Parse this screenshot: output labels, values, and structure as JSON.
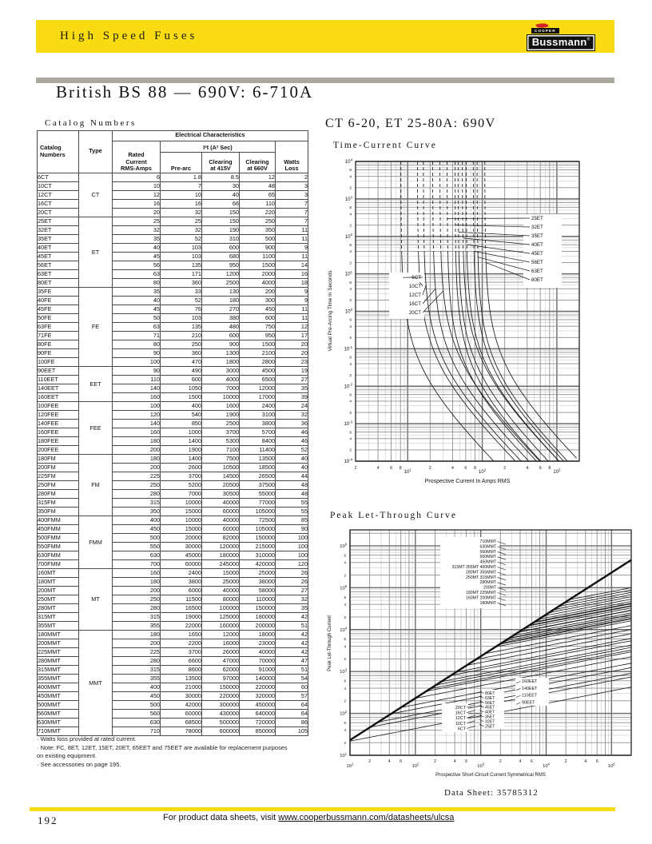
{
  "header": {
    "bar_title": "High Speed Fuses",
    "logo_cooper": "COOPER",
    "logo_brand": "Bussmann",
    "logo_reg": "®",
    "accent_color": "#F8DB12",
    "flame_color": "#D2232A"
  },
  "page_title": "British BS 88 — 690V: 6-710A",
  "catalog": {
    "label": "Catalog Numbers",
    "table": {
      "headers": {
        "catalog": "Catalog\nNumbers",
        "type": "Type",
        "electrical": "Electrical Characteristics",
        "rated": "Rated\nCurrent\nRMS-Amps",
        "i2t": "I²t (A² Sec)",
        "prearc": "Pre-arc",
        "clearing415": "Clearing\nat 415V",
        "clearing660": "Clearing\nat 660V",
        "watts": "Watts\nLoss"
      },
      "groups": [
        {
          "type": "CT",
          "rows": [
            [
              "6CT",
              "6",
              "1.8",
              "8.5",
              "12",
              "2"
            ],
            [
              "10CT",
              "10",
              "7",
              "30",
              "48",
              "3"
            ],
            [
              "12CT",
              "12",
              "10",
              "40",
              "65",
              "3"
            ],
            [
              "16CT",
              "16",
              "16",
              "66",
              "110",
              "7"
            ],
            [
              "20CT",
              "20",
              "32",
              "150",
              "220",
              "7"
            ]
          ]
        },
        {
          "type": "ET",
          "rows": [
            [
              "25ET",
              "25",
              "25",
              "150",
              "250",
              "7"
            ],
            [
              "32ET",
              "32",
              "32",
              "190",
              "350",
              "11"
            ],
            [
              "35ET",
              "35",
              "52",
              "310",
              "500",
              "11"
            ],
            [
              "40ET",
              "40",
              "103",
              "600",
              "900",
              "9"
            ],
            [
              "45ET",
              "45",
              "103",
              "680",
              "1100",
              "11"
            ],
            [
              "56ET",
              "56",
              "135",
              "950",
              "1500",
              "14"
            ],
            [
              "63ET",
              "63",
              "171",
              "1200",
              "2000",
              "16"
            ],
            [
              "80ET",
              "80",
              "360",
              "2500",
              "4000",
              "18"
            ]
          ]
        },
        {
          "type": "FE",
          "rows": [
            [
              "35FE",
              "35",
              "33",
              "130",
              "200",
              "9"
            ],
            [
              "40FE",
              "40",
              "52",
              "180",
              "300",
              "9"
            ],
            [
              "45FE",
              "45",
              "76",
              "270",
              "450",
              "11"
            ],
            [
              "50FE",
              "50",
              "103",
              "380",
              "600",
              "11"
            ],
            [
              "63FE",
              "63",
              "135",
              "480",
              "750",
              "12"
            ],
            [
              "71FE",
              "71",
              "210",
              "600",
              "950",
              "17"
            ],
            [
              "80FE",
              "80",
              "250",
              "900",
              "1500",
              "20"
            ],
            [
              "90FE",
              "90",
              "360",
              "1300",
              "2100",
              "20"
            ],
            [
              "100FE",
              "100",
              "470",
              "1800",
              "2800",
              "23"
            ]
          ]
        },
        {
          "type": "EET",
          "rows": [
            [
              "90EET",
              "90",
              "490",
              "3000",
              "4500",
              "19"
            ],
            [
              "110EET",
              "110",
              "600",
              "4000",
              "6500",
              "27"
            ],
            [
              "140EET",
              "140",
              "1050",
              "7000",
              "12000",
              "35"
            ],
            [
              "160EET",
              "160",
              "1500",
              "10000",
              "17000",
              "39"
            ]
          ]
        },
        {
          "type": "FEE",
          "rows": [
            [
              "100FEE",
              "100",
              "400",
              "1600",
              "2400",
              "24"
            ],
            [
              "120FEE",
              "120",
              "540",
              "1900",
              "3100",
              "32"
            ],
            [
              "140FEE",
              "140",
              "850",
              "2500",
              "3800",
              "36"
            ],
            [
              "160FEE",
              "160",
              "1000",
              "3700",
              "5700",
              "46"
            ],
            [
              "180FEE",
              "180",
              "1400",
              "5300",
              "8400",
              "46"
            ],
            [
              "200FEE",
              "200",
              "1900",
              "7100",
              "11400",
              "52"
            ]
          ]
        },
        {
          "type": "FM",
          "rows": [
            [
              "180FM",
              "180",
              "1400",
              "7500",
              "13500",
              "40"
            ],
            [
              "200FM",
              "200",
              "2600",
              "10500",
              "18500",
              "40"
            ],
            [
              "225FM",
              "225",
              "3700",
              "14500",
              "26500",
              "44"
            ],
            [
              "250FM",
              "250",
              "5200",
              "20500",
              "37500",
              "48"
            ],
            [
              "280FM",
              "280",
              "7000",
              "30500",
              "55000",
              "48"
            ],
            [
              "315FM",
              "315",
              "10000",
              "40000",
              "77000",
              "55"
            ],
            [
              "350FM",
              "350",
              "15000",
              "60000",
              "105000",
              "55"
            ]
          ]
        },
        {
          "type": "FMM",
          "rows": [
            [
              "400FMM",
              "400",
              "10000",
              "40000",
              "72500",
              "85"
            ],
            [
              "450FMM",
              "450",
              "15000",
              "60000",
              "105000",
              "90"
            ],
            [
              "500FMM",
              "500",
              "20000",
              "82000",
              "150000",
              "100"
            ],
            [
              "550FMM",
              "550",
              "30000",
              "120000",
              "215000",
              "100"
            ],
            [
              "630FMM",
              "630",
              "45000",
              "180000",
              "310000",
              "100"
            ],
            [
              "700FMM",
              "700",
              "60000",
              "245000",
              "420000",
              "120"
            ]
          ]
        },
        {
          "type": "MT",
          "rows": [
            [
              "160MT",
              "160",
              "2400",
              "15000",
              "25000",
              "26"
            ],
            [
              "180MT",
              "180",
              "3800",
              "25000",
              "38000",
              "26"
            ],
            [
              "200MT",
              "200",
              "6000",
              "40000",
              "58000",
              "27"
            ],
            [
              "250MT",
              "250",
              "11500",
              "80000",
              "110000",
              "32"
            ],
            [
              "280MT",
              "280",
              "16500",
              "100000",
              "150000",
              "35"
            ],
            [
              "315MT",
              "315",
              "19000",
              "125000",
              "180000",
              "42"
            ],
            [
              "355MT",
              "355",
              "22000",
              "160000",
              "200000",
              "51"
            ]
          ]
        },
        {
          "type": "MMT",
          "rows": [
            [
              "180MMT",
              "180",
              "1650",
              "12000",
              "18000",
              "42"
            ],
            [
              "200MMT",
              "200",
              "2200",
              "16000",
              "23000",
              "42"
            ],
            [
              "225MMT",
              "225",
              "3700",
              "26000",
              "40000",
              "42"
            ],
            [
              "280MMT",
              "280",
              "6600",
              "47000",
              "70000",
              "47"
            ],
            [
              "315MMT",
              "315",
              "8600",
              "62000",
              "91000",
              "51"
            ],
            [
              "355MMT",
              "355",
              "13500",
              "97000",
              "140000",
              "54"
            ],
            [
              "400MMT",
              "400",
              "21000",
              "150000",
              "220000",
              "60"
            ],
            [
              "450MMT",
              "450",
              "30000",
              "220000",
              "320000",
              "57"
            ],
            [
              "500MMT",
              "500",
              "42000",
              "300000",
              "450000",
              "64"
            ],
            [
              "560MMT",
              "560",
              "60000",
              "430000",
              "640000",
              "64"
            ],
            [
              "630MMT",
              "630",
              "68500",
              "500000",
              "720000",
              "86"
            ],
            [
              "710MMT",
              "710",
              "78000",
              "600000",
              "850000",
              "105"
            ]
          ]
        }
      ]
    },
    "footnotes": [
      "· Watts loss provided at rated current.",
      "· Note: FC, 8ET, 12ET, 15ET, 20ET, 65EET and 75EET are available for replacement purposes on existing equipment.",
      "· See accessories on page 195."
    ]
  },
  "right_section": {
    "title": "CT 6-20, ET 25-80A: 690V",
    "datasheet": "Data Sheet: 35785312"
  },
  "chart_data": [
    {
      "id": "time_current",
      "type": "line",
      "title": "Time-Current Curve",
      "xlabel": "Prospective Current In Amps RMS",
      "ylabel": "Virtual Pre-Arcing Time In Seconds",
      "x_range_amps": [
        2,
        2000
      ],
      "y_range_seconds": [
        0.0001,
        10000
      ],
      "x_decades": [
        1,
        2,
        3
      ],
      "y_decades": [
        4,
        3,
        2,
        1,
        0,
        -1,
        -2,
        -3,
        -4
      ],
      "x_minor_tick_labels": [
        2,
        4,
        6,
        8
      ],
      "y_minor_tick_labels": [
        2,
        4,
        6
      ],
      "grid": true,
      "series": [
        {
          "name": "6CT",
          "rating": 6,
          "prearc_i2t": 1.8,
          "dashed_above_seconds": 30
        },
        {
          "name": "10CT",
          "rating": 10,
          "prearc_i2t": 7,
          "dashed_above_seconds": 30
        },
        {
          "name": "12CT",
          "rating": 12,
          "prearc_i2t": 10,
          "dashed_above_seconds": 30
        },
        {
          "name": "16CT",
          "rating": 16,
          "prearc_i2t": 16,
          "dashed_above_seconds": 30
        },
        {
          "name": "20CT",
          "rating": 20,
          "prearc_i2t": 32,
          "dashed_above_seconds": 30
        },
        {
          "name": "25ET",
          "rating": 25,
          "prearc_i2t": 25,
          "dashed_above_seconds": 30
        },
        {
          "name": "32ET",
          "rating": 32,
          "prearc_i2t": 32,
          "dashed_above_seconds": 30
        },
        {
          "name": "35ET",
          "rating": 35,
          "prearc_i2t": 52,
          "dashed_above_seconds": 30
        },
        {
          "name": "40ET",
          "rating": 40,
          "prearc_i2t": 103,
          "dashed_above_seconds": 30
        },
        {
          "name": "45ET",
          "rating": 45,
          "prearc_i2t": 103,
          "dashed_above_seconds": 30
        },
        {
          "name": "56ET",
          "rating": 56,
          "prearc_i2t": 135,
          "dashed_above_seconds": 30
        },
        {
          "name": "63ET",
          "rating": 63,
          "prearc_i2t": 171,
          "dashed_above_seconds": 30
        },
        {
          "name": "80ET",
          "rating": 80,
          "prearc_i2t": 360,
          "dashed_above_seconds": 30
        }
      ],
      "callouts": {
        "left": [
          "6CT",
          "10CT",
          "12CT",
          "16CT",
          "20CT"
        ],
        "right": [
          "25ET",
          "32ET",
          "35ET",
          "40ET",
          "45ET",
          "56ET",
          "63ET",
          "80ET"
        ]
      }
    },
    {
      "id": "peak_let_through",
      "type": "line",
      "title": "Peak Let-Through Curve",
      "xlabel": "Prospective Short-Circuit Current Symmetrical RMS",
      "ylabel": "Peak Let-Through Current",
      "x_range_amps": [
        10,
        200000
      ],
      "y_range_amps": [
        10,
        1000000
      ],
      "x_decades": [
        1,
        2,
        3,
        4,
        5
      ],
      "y_decades": [
        1,
        2,
        3,
        4,
        5
      ],
      "x_minor_tick_labels": [
        2,
        4,
        6
      ],
      "y_minor_tick_labels": [
        2,
        4,
        6
      ],
      "grid": true,
      "diagonal_peak_factor": 2.3,
      "families": [
        {
          "name": "CT",
          "ratings": [
            6,
            10,
            12,
            16,
            20
          ],
          "f": 0.85
        },
        {
          "name": "ET",
          "ratings": [
            25,
            32,
            35,
            40,
            45,
            56,
            63,
            80
          ],
          "f": 0.95
        },
        {
          "name": "EET",
          "ratings": [
            90,
            110,
            140,
            160
          ],
          "f": 1.05
        },
        {
          "name": "MT",
          "ratings": [
            160,
            180,
            200,
            250,
            280,
            315,
            355
          ],
          "f": 1.0
        },
        {
          "name": "MMT",
          "ratings": [
            180,
            200,
            225,
            280,
            315,
            355,
            400,
            450,
            500,
            560,
            630,
            710
          ],
          "f": 1.1
        }
      ],
      "label_block": [
        "710MMT",
        "630MMT",
        "560MMT",
        "500MMT",
        "450MMT",
        "315MT 355MT 400MMT",
        "280MT 355MMT",
        "250MT 315MMT",
        "280MMT",
        "200MT",
        "180MT 225MMT",
        "160MT 200MMT",
        "180MMT"
      ],
      "ct_labels": [
        "20CT",
        "16CT",
        "12CT",
        "10CT",
        "6CT"
      ],
      "et_labels": [
        "80ET",
        "63ET",
        "56ET",
        "45ET",
        "40ET",
        "35ET",
        "32ET",
        "25ET"
      ],
      "eet_labels": [
        "160EET",
        "140EET",
        "110EET",
        "90EET"
      ]
    }
  ],
  "footer": {
    "page_number": "192",
    "link_prefix": "For product data sheets, visit ",
    "link_url": "www.cooperbussmann.com/datasheets/ulcsa"
  }
}
